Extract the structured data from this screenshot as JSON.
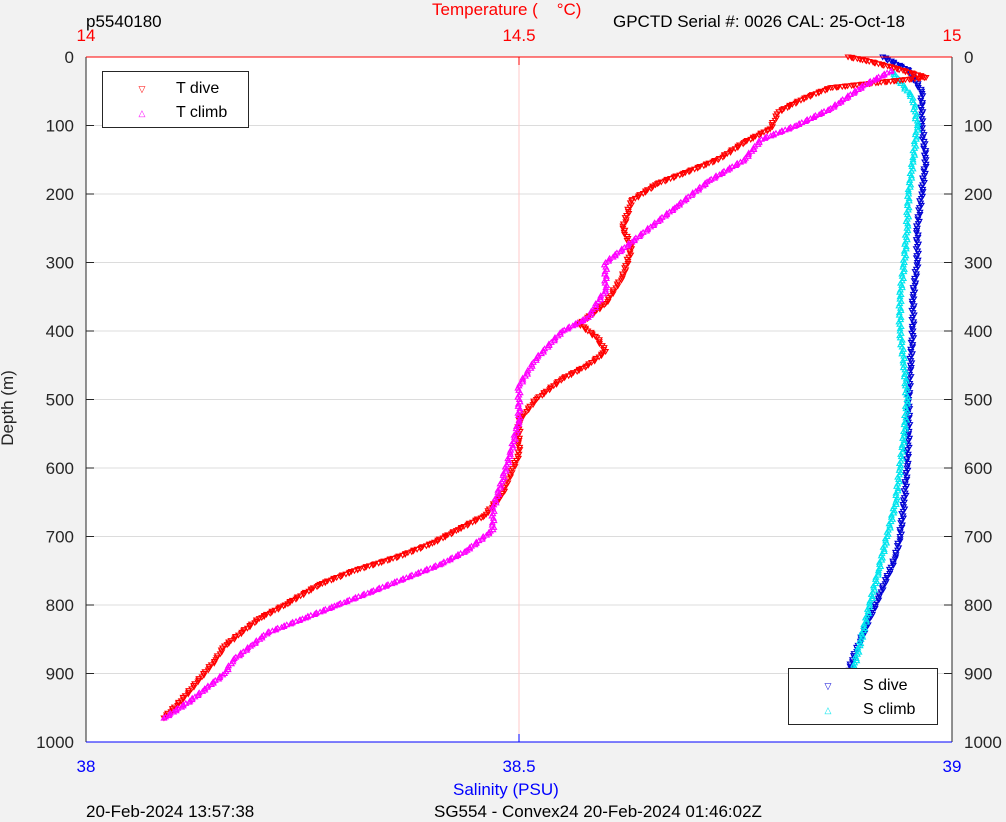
{
  "header": {
    "profile_id": "p5540180",
    "instrument": "GPCTD Serial #: 0026 CAL: 25-Oct-18"
  },
  "footer": {
    "left": "20-Feb-2024 13:57:38",
    "center": "SG554 - Convex24 20-Feb-2024 01:46:02Z"
  },
  "colors": {
    "t_dive": "#ff0000",
    "t_climb": "#ff00ff",
    "s_dive": "#0000d4",
    "s_climb": "#00e5ee",
    "temp_axis": "#ff0000",
    "sal_axis": "#0000ff"
  },
  "chart_data": {
    "type": "scatter",
    "ylabel": "Depth (m)",
    "ylim": [
      0,
      1000
    ],
    "y_reversed": true,
    "y_ticks": [
      "0",
      "100",
      "200",
      "300",
      "400",
      "500",
      "600",
      "700",
      "800",
      "900",
      "1000"
    ],
    "x_top": {
      "label": "Temperature (    °C)",
      "lim": [
        14,
        15
      ],
      "ticks": [
        "14",
        "14.5",
        "15"
      ]
    },
    "x_bottom": {
      "label": "Salinity (PSU)",
      "lim": [
        38,
        39
      ],
      "ticks": [
        "38",
        "38.5",
        "39"
      ]
    },
    "grid": true,
    "series": [
      {
        "name": "T dive",
        "axis": "top",
        "marker": "triangle-down",
        "x": [
          14.88,
          14.9,
          14.93,
          14.97,
          14.86,
          14.83,
          14.8,
          14.79,
          14.76,
          14.73,
          14.69,
          14.66,
          14.63,
          14.62,
          14.63,
          14.62,
          14.6,
          14.57,
          14.59,
          14.6,
          14.58,
          14.55,
          14.52,
          14.5,
          14.5,
          14.5,
          14.49,
          14.48,
          14.46,
          14.43,
          14.4,
          14.36,
          14.31,
          14.27,
          14.23,
          14.2,
          14.18,
          14.16,
          14.15,
          14.13,
          14.11,
          14.09
        ],
        "y": [
          0,
          5,
          15,
          30,
          45,
          60,
          80,
          105,
          125,
          150,
          170,
          185,
          210,
          250,
          280,
          320,
          360,
          390,
          410,
          430,
          450,
          470,
          500,
          530,
          560,
          580,
          610,
          640,
          670,
          690,
          710,
          730,
          750,
          770,
          800,
          820,
          840,
          860,
          880,
          910,
          940,
          965
        ]
      },
      {
        "name": "T climb",
        "axis": "top",
        "marker": "triangle-up",
        "x": [
          14.93,
          14.9,
          14.86,
          14.82,
          14.78,
          14.76,
          14.72,
          14.68,
          14.64,
          14.6,
          14.6,
          14.58,
          14.55,
          14.52,
          14.5,
          14.5,
          14.49,
          14.48,
          14.47,
          14.47,
          14.44,
          14.41,
          14.37,
          14.33,
          14.29,
          14.25,
          14.21,
          14.19,
          14.17,
          14.16,
          14.14,
          14.12,
          14.09
        ],
        "y": [
          20,
          40,
          75,
          100,
          120,
          150,
          180,
          220,
          260,
          300,
          340,
          380,
          400,
          440,
          480,
          530,
          580,
          620,
          660,
          690,
          720,
          740,
          760,
          780,
          800,
          820,
          840,
          860,
          880,
          900,
          920,
          940,
          965
        ]
      },
      {
        "name": "S dive",
        "axis": "bottom",
        "marker": "triangle-down",
        "x": [
          38.92,
          38.95,
          38.965,
          38.965,
          38.97,
          38.965,
          38.96,
          38.96,
          38.955,
          38.955,
          38.952,
          38.95,
          38.95,
          38.948,
          38.945,
          38.94,
          38.935,
          38.925,
          38.915,
          38.905,
          38.895,
          38.885,
          38.875,
          38.87
        ],
        "y": [
          0,
          20,
          50,
          100,
          150,
          200,
          250,
          300,
          350,
          400,
          450,
          500,
          550,
          600,
          650,
          700,
          730,
          760,
          790,
          820,
          850,
          880,
          920,
          965
        ]
      },
      {
        "name": "S climb",
        "axis": "bottom",
        "marker": "triangle-up",
        "x": [
          38.93,
          38.955,
          38.96,
          38.955,
          38.95,
          38.948,
          38.945,
          38.94,
          38.94,
          38.945,
          38.948,
          38.945,
          38.94,
          38.935,
          38.925,
          38.915,
          38.905,
          38.895,
          38.885,
          38.875,
          38.87
        ],
        "y": [
          20,
          60,
          100,
          150,
          200,
          250,
          300,
          350,
          400,
          450,
          500,
          550,
          600,
          650,
          700,
          750,
          800,
          850,
          900,
          940,
          965
        ]
      }
    ]
  }
}
